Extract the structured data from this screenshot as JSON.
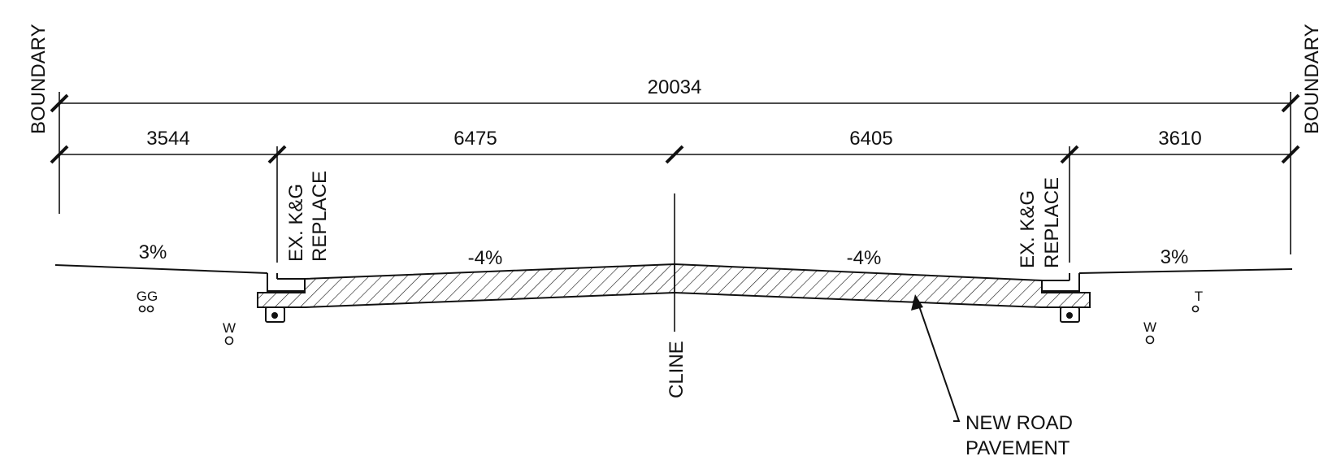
{
  "boundary_left": "BOUNDARY",
  "boundary_right": "BOUNDARY",
  "dims": {
    "overall": "20034",
    "seg1": "3544",
    "seg2": "6475",
    "seg3": "6405",
    "seg4": "3610"
  },
  "kg_left": {
    "line1": "EX. K&G",
    "line2": "REPLACE"
  },
  "kg_right": {
    "line1": "EX. K&G",
    "line2": "REPLACE"
  },
  "slopes": {
    "verge_left": "3%",
    "road_left": "-4%",
    "road_right": "-4%",
    "verge_right": "3%"
  },
  "services": {
    "gas": "GG",
    "water_left": "W",
    "water_right": "W",
    "telecom": "T"
  },
  "centerline": "CLINE",
  "callout": {
    "line1": "NEW ROAD",
    "line2": "PAVEMENT"
  }
}
